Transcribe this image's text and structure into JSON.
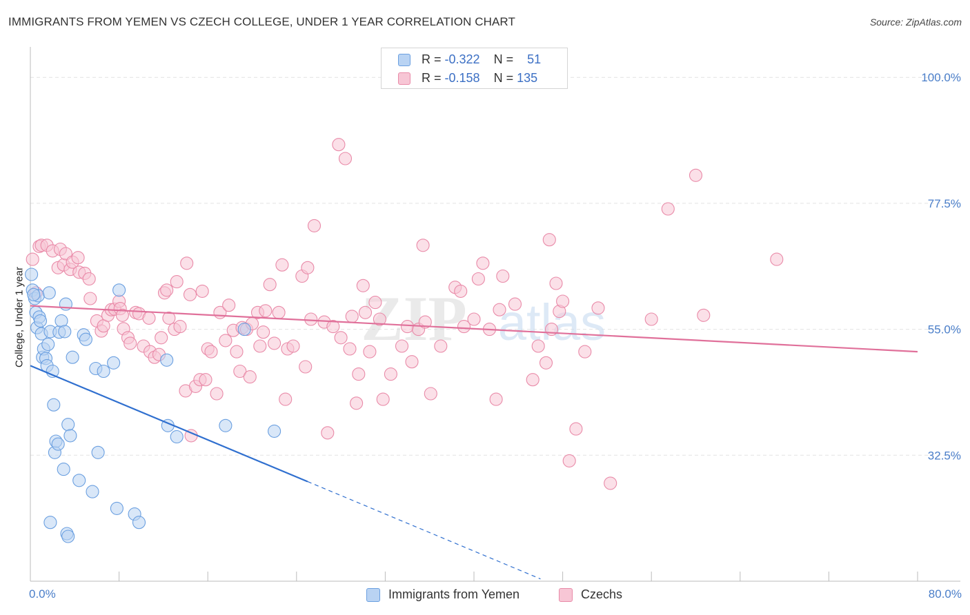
{
  "chart_data": {
    "type": "scatter",
    "title": "IMMIGRANTS FROM YEMEN VS CZECH COLLEGE, UNDER 1 YEAR CORRELATION CHART",
    "source": "Source: ZipAtlas.com",
    "xlabel": "",
    "ylabel": "College, Under 1 year",
    "xlim": [
      0,
      80
    ],
    "ylim": [
      10,
      102
    ],
    "x_tick_labels": {
      "left": "0.0%",
      "right": "80.0%"
    },
    "y_ticks": [
      {
        "value": 100,
        "label": "100.0%"
      },
      {
        "value": 77.5,
        "label": "77.5%"
      },
      {
        "value": 55,
        "label": "55.0%"
      },
      {
        "value": 32.5,
        "label": "32.5%"
      }
    ],
    "watermark": "ZIPatlas",
    "legend": {
      "rows": [
        {
          "r_label": "R =",
          "r_value": "-0.322",
          "n_label": "N =",
          "n_value": "51"
        },
        {
          "r_label": "R =",
          "r_value": "-0.158",
          "n_label": "N =",
          "n_value": "135"
        }
      ]
    },
    "series": [
      {
        "name": "Immigrants from Yemen",
        "color": "#6a9fe0",
        "fill": "#b9d3f3",
        "line_color": "#2f6fcf",
        "trend": {
          "x0": 0,
          "y0": 48.5,
          "x1": 25,
          "y1": 27.8,
          "dash_to_x": 46
        },
        "points": [
          [
            0.1,
            64.8
          ],
          [
            0.2,
            62.0
          ],
          [
            0.4,
            60.5
          ],
          [
            0.5,
            58.0
          ],
          [
            0.6,
            55.3
          ],
          [
            0.7,
            61.0
          ],
          [
            0.8,
            57.2
          ],
          [
            0.9,
            56.5
          ],
          [
            1.0,
            54.2
          ],
          [
            1.1,
            50.0
          ],
          [
            1.2,
            51.5
          ],
          [
            1.4,
            49.8
          ],
          [
            1.5,
            48.5
          ],
          [
            1.6,
            52.3
          ],
          [
            1.7,
            61.5
          ],
          [
            1.8,
            54.6
          ],
          [
            2.0,
            47.5
          ],
          [
            2.1,
            41.5
          ],
          [
            2.2,
            33.0
          ],
          [
            2.3,
            35.0
          ],
          [
            2.5,
            34.5
          ],
          [
            2.6,
            54.5
          ],
          [
            2.8,
            56.5
          ],
          [
            3.1,
            54.6
          ],
          [
            3.2,
            59.5
          ],
          [
            3.4,
            38.0
          ],
          [
            3.6,
            36.0
          ],
          [
            3.8,
            50.0
          ],
          [
            3.0,
            30.0
          ],
          [
            4.4,
            28.0
          ],
          [
            4.8,
            54.0
          ],
          [
            5.0,
            53.2
          ],
          [
            5.6,
            26.0
          ],
          [
            5.9,
            48.0
          ],
          [
            6.1,
            33.0
          ],
          [
            6.6,
            47.5
          ],
          [
            7.5,
            49.0
          ],
          [
            7.8,
            23.0
          ],
          [
            8.0,
            62.0
          ],
          [
            9.4,
            22.0
          ],
          [
            9.8,
            20.5
          ],
          [
            12.3,
            49.5
          ],
          [
            12.4,
            37.8
          ],
          [
            13.2,
            35.8
          ],
          [
            1.8,
            20.5
          ],
          [
            3.3,
            18.5
          ],
          [
            3.4,
            18.0
          ],
          [
            17.6,
            37.8
          ],
          [
            19.3,
            55.0
          ],
          [
            22.0,
            36.8
          ],
          [
            0.3,
            61.2
          ]
        ]
      },
      {
        "name": "Czechs",
        "color": "#e98aa8",
        "fill": "#f7c6d5",
        "line_color": "#e0709a",
        "trend": {
          "x0": 0,
          "y0": 59.2,
          "x1": 80,
          "y1": 51.0
        },
        "points": [
          [
            0.2,
            67.5
          ],
          [
            0.5,
            61.5
          ],
          [
            0.8,
            69.8
          ],
          [
            1.0,
            70.0
          ],
          [
            1.5,
            70.0
          ],
          [
            2.0,
            69.0
          ],
          [
            2.5,
            66.0
          ],
          [
            2.7,
            69.3
          ],
          [
            3.0,
            66.5
          ],
          [
            3.2,
            68.5
          ],
          [
            3.6,
            65.7
          ],
          [
            3.8,
            67.0
          ],
          [
            4.3,
            67.8
          ],
          [
            4.4,
            65.2
          ],
          [
            4.9,
            65.0
          ],
          [
            5.3,
            64.0
          ],
          [
            5.4,
            60.5
          ],
          [
            6.0,
            56.5
          ],
          [
            6.4,
            54.7
          ],
          [
            6.6,
            55.6
          ],
          [
            7.0,
            57.5
          ],
          [
            7.3,
            58.5
          ],
          [
            7.6,
            58.6
          ],
          [
            8.0,
            60.0
          ],
          [
            8.1,
            58.7
          ],
          [
            8.3,
            57.5
          ],
          [
            8.4,
            55.1
          ],
          [
            8.8,
            53.5
          ],
          [
            9.0,
            52.5
          ],
          [
            9.5,
            58.0
          ],
          [
            9.8,
            57.8
          ],
          [
            10.2,
            52.0
          ],
          [
            10.7,
            57.0
          ],
          [
            10.8,
            51.0
          ],
          [
            11.2,
            50.0
          ],
          [
            11.6,
            50.5
          ],
          [
            11.8,
            53.5
          ],
          [
            12.1,
            61.5
          ],
          [
            12.3,
            62.0
          ],
          [
            12.5,
            57.0
          ],
          [
            13.0,
            55.0
          ],
          [
            13.2,
            63.5
          ],
          [
            13.5,
            55.5
          ],
          [
            14.0,
            44.0
          ],
          [
            14.1,
            66.8
          ],
          [
            14.4,
            61.2
          ],
          [
            14.9,
            44.8
          ],
          [
            15.3,
            46.0
          ],
          [
            15.5,
            61.8
          ],
          [
            15.8,
            46.0
          ],
          [
            16.0,
            51.5
          ],
          [
            16.3,
            51.0
          ],
          [
            16.8,
            43.5
          ],
          [
            17.1,
            58.0
          ],
          [
            17.6,
            53.0
          ],
          [
            17.9,
            59.3
          ],
          [
            18.3,
            54.8
          ],
          [
            18.6,
            51.0
          ],
          [
            18.9,
            47.5
          ],
          [
            19.1,
            55.3
          ],
          [
            19.5,
            55.0
          ],
          [
            19.8,
            46.5
          ],
          [
            20.0,
            56.0
          ],
          [
            20.5,
            58.0
          ],
          [
            20.7,
            52.0
          ],
          [
            21.0,
            54.5
          ],
          [
            21.2,
            58.3
          ],
          [
            21.6,
            63.0
          ],
          [
            22.0,
            52.5
          ],
          [
            22.4,
            58.0
          ],
          [
            22.7,
            66.5
          ],
          [
            23.0,
            42.5
          ],
          [
            23.2,
            51.5
          ],
          [
            23.7,
            52.0
          ],
          [
            24.5,
            64.5
          ],
          [
            24.8,
            48.3
          ],
          [
            25.0,
            66.0
          ],
          [
            25.3,
            56.8
          ],
          [
            25.6,
            73.5
          ],
          [
            26.5,
            56.3
          ],
          [
            26.8,
            36.5
          ],
          [
            27.3,
            55.5
          ],
          [
            27.8,
            88.0
          ],
          [
            28.0,
            53.5
          ],
          [
            28.4,
            85.5
          ],
          [
            28.8,
            51.5
          ],
          [
            29.0,
            57.3
          ],
          [
            29.6,
            47.0
          ],
          [
            29.4,
            41.8
          ],
          [
            30.0,
            62.8
          ],
          [
            30.6,
            51.0
          ],
          [
            31.1,
            59.8
          ],
          [
            31.5,
            56.8
          ],
          [
            31.8,
            42.5
          ],
          [
            32.5,
            47.0
          ],
          [
            33.5,
            52.0
          ],
          [
            34.0,
            55.5
          ],
          [
            34.4,
            49.2
          ],
          [
            35.0,
            55.0
          ],
          [
            35.4,
            70.0
          ],
          [
            35.6,
            56.3
          ],
          [
            36.1,
            43.5
          ],
          [
            37.0,
            52.0
          ],
          [
            38.3,
            62.5
          ],
          [
            38.8,
            61.8
          ],
          [
            39.1,
            55.5
          ],
          [
            40.0,
            56.8
          ],
          [
            40.4,
            64.0
          ],
          [
            40.8,
            66.8
          ],
          [
            41.4,
            55.0
          ],
          [
            42.0,
            42.5
          ],
          [
            42.3,
            58.5
          ],
          [
            42.6,
            64.5
          ],
          [
            43.7,
            59.5
          ],
          [
            45.3,
            46.0
          ],
          [
            45.8,
            52.0
          ],
          [
            46.5,
            49.0
          ],
          [
            47.0,
            55.0
          ],
          [
            47.4,
            63.2
          ],
          [
            47.7,
            58.2
          ],
          [
            48.0,
            60.0
          ],
          [
            48.6,
            31.5
          ],
          [
            49.2,
            37.2
          ],
          [
            50.0,
            51.0
          ],
          [
            51.2,
            58.8
          ],
          [
            52.3,
            27.5
          ],
          [
            56.0,
            56.8
          ],
          [
            57.5,
            76.5
          ],
          [
            60.0,
            82.5
          ],
          [
            60.7,
            57.5
          ],
          [
            67.3,
            67.5
          ],
          [
            46.8,
            71.0
          ],
          [
            30.2,
            58.0
          ],
          [
            14.5,
            36.0
          ]
        ]
      }
    ]
  },
  "legend_bottom": {
    "items": [
      "Immigrants from Yemen",
      "Czechs"
    ]
  }
}
